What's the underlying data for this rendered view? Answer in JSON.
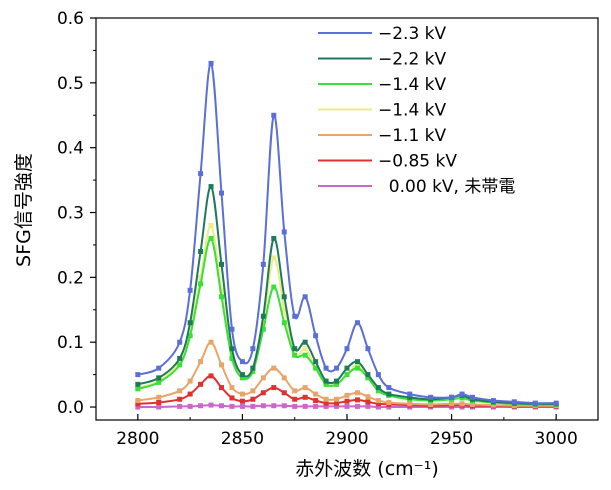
{
  "chart_data": {
    "type": "line",
    "xlabel": "赤外波数 (cm⁻¹)",
    "ylabel": "SFG信号強度",
    "xlim": [
      2780,
      3020
    ],
    "ylim": [
      -0.02,
      0.6
    ],
    "xticks": [
      2800,
      2850,
      2900,
      2950,
      3000
    ],
    "xtick_labels": [
      "2800",
      "2850",
      "2900",
      "2950",
      "3000"
    ],
    "yticks": [
      0.0,
      0.1,
      0.2,
      0.3,
      0.4,
      0.5,
      0.6
    ],
    "ytick_labels": [
      "0.0",
      "0.1",
      "0.2",
      "0.3",
      "0.4",
      "0.5",
      "0.6"
    ],
    "legend_position": "top-right",
    "grid": false,
    "x": [
      2800,
      2810,
      2820,
      2825,
      2830,
      2835,
      2840,
      2845,
      2850,
      2855,
      2860,
      2865,
      2870,
      2875,
      2880,
      2885,
      2890,
      2895,
      2900,
      2905,
      2910,
      2915,
      2920,
      2930,
      2940,
      2950,
      2955,
      2960,
      2970,
      2980,
      2990,
      3000
    ],
    "series": [
      {
        "name": "−2.3 kV",
        "color": "#5b6fd6",
        "values": [
          0.05,
          0.06,
          0.1,
          0.18,
          0.36,
          0.53,
          0.33,
          0.12,
          0.07,
          0.09,
          0.22,
          0.45,
          0.27,
          0.14,
          0.17,
          0.11,
          0.06,
          0.06,
          0.09,
          0.13,
          0.09,
          0.05,
          0.03,
          0.02,
          0.015,
          0.015,
          0.02,
          0.015,
          0.01,
          0.008,
          0.006,
          0.006
        ]
      },
      {
        "name": "−2.2 kV",
        "color": "#1f7a5a",
        "values": [
          0.035,
          0.045,
          0.075,
          0.13,
          0.24,
          0.34,
          0.22,
          0.09,
          0.05,
          0.06,
          0.14,
          0.26,
          0.17,
          0.09,
          0.1,
          0.07,
          0.04,
          0.04,
          0.06,
          0.07,
          0.05,
          0.03,
          0.02,
          0.015,
          0.012,
          0.015,
          0.018,
          0.012,
          0.008,
          0.006,
          0.005,
          0.005
        ]
      },
      {
        "name": "−1.4 kV",
        "color": "#38e038",
        "values": [
          0.028,
          0.038,
          0.065,
          0.11,
          0.19,
          0.26,
          0.17,
          0.075,
          0.045,
          0.055,
          0.12,
          0.185,
          0.13,
          0.08,
          0.08,
          0.06,
          0.035,
          0.035,
          0.05,
          0.06,
          0.045,
          0.025,
          0.018,
          0.012,
          0.01,
          0.012,
          0.014,
          0.01,
          0.007,
          0.005,
          0.004,
          0.004
        ]
      },
      {
        "name": "−1.4 kV",
        "color": "#ecec8a",
        "values": [
          0.03,
          0.04,
          0.07,
          0.12,
          0.2,
          0.28,
          0.18,
          0.08,
          0.05,
          0.06,
          0.13,
          0.23,
          0.15,
          0.08,
          0.09,
          0.06,
          0.035,
          0.035,
          0.05,
          0.065,
          0.045,
          0.025,
          0.018,
          0.012,
          0.01,
          0.012,
          0.014,
          0.01,
          0.007,
          0.005,
          0.004,
          0.004
        ]
      },
      {
        "name": "−1.1 kV",
        "color": "#e8a56a",
        "values": [
          0.01,
          0.015,
          0.025,
          0.04,
          0.07,
          0.1,
          0.065,
          0.03,
          0.02,
          0.025,
          0.045,
          0.06,
          0.045,
          0.025,
          0.03,
          0.02,
          0.012,
          0.012,
          0.018,
          0.022,
          0.016,
          0.01,
          0.007,
          0.005,
          0.004,
          0.005,
          0.005,
          0.004,
          0.003,
          0.002,
          0.002,
          0.002
        ]
      },
      {
        "name": "−0.85 kV",
        "color": "#e03030",
        "values": [
          0.005,
          0.007,
          0.012,
          0.02,
          0.035,
          0.048,
          0.03,
          0.014,
          0.009,
          0.012,
          0.022,
          0.03,
          0.022,
          0.012,
          0.015,
          0.01,
          0.006,
          0.006,
          0.009,
          0.011,
          0.008,
          0.005,
          0.004,
          0.003,
          0.002,
          0.003,
          0.003,
          0.002,
          0.002,
          0.001,
          0.001,
          0.001
        ]
      },
      {
        "name": "  0.00 kV, 未帯電",
        "color": "#cc66cc",
        "values": [
          0.0,
          0.0,
          0.001,
          0.001,
          0.002,
          0.003,
          0.002,
          0.001,
          0.001,
          0.001,
          0.002,
          0.002,
          0.002,
          0.001,
          0.001,
          0.001,
          0.001,
          0.001,
          0.001,
          0.001,
          0.001,
          0.0,
          0.0,
          0.0,
          0.0,
          0.0,
          0.0,
          0.0,
          0.0,
          0.0,
          0.0,
          0.0
        ]
      }
    ]
  }
}
